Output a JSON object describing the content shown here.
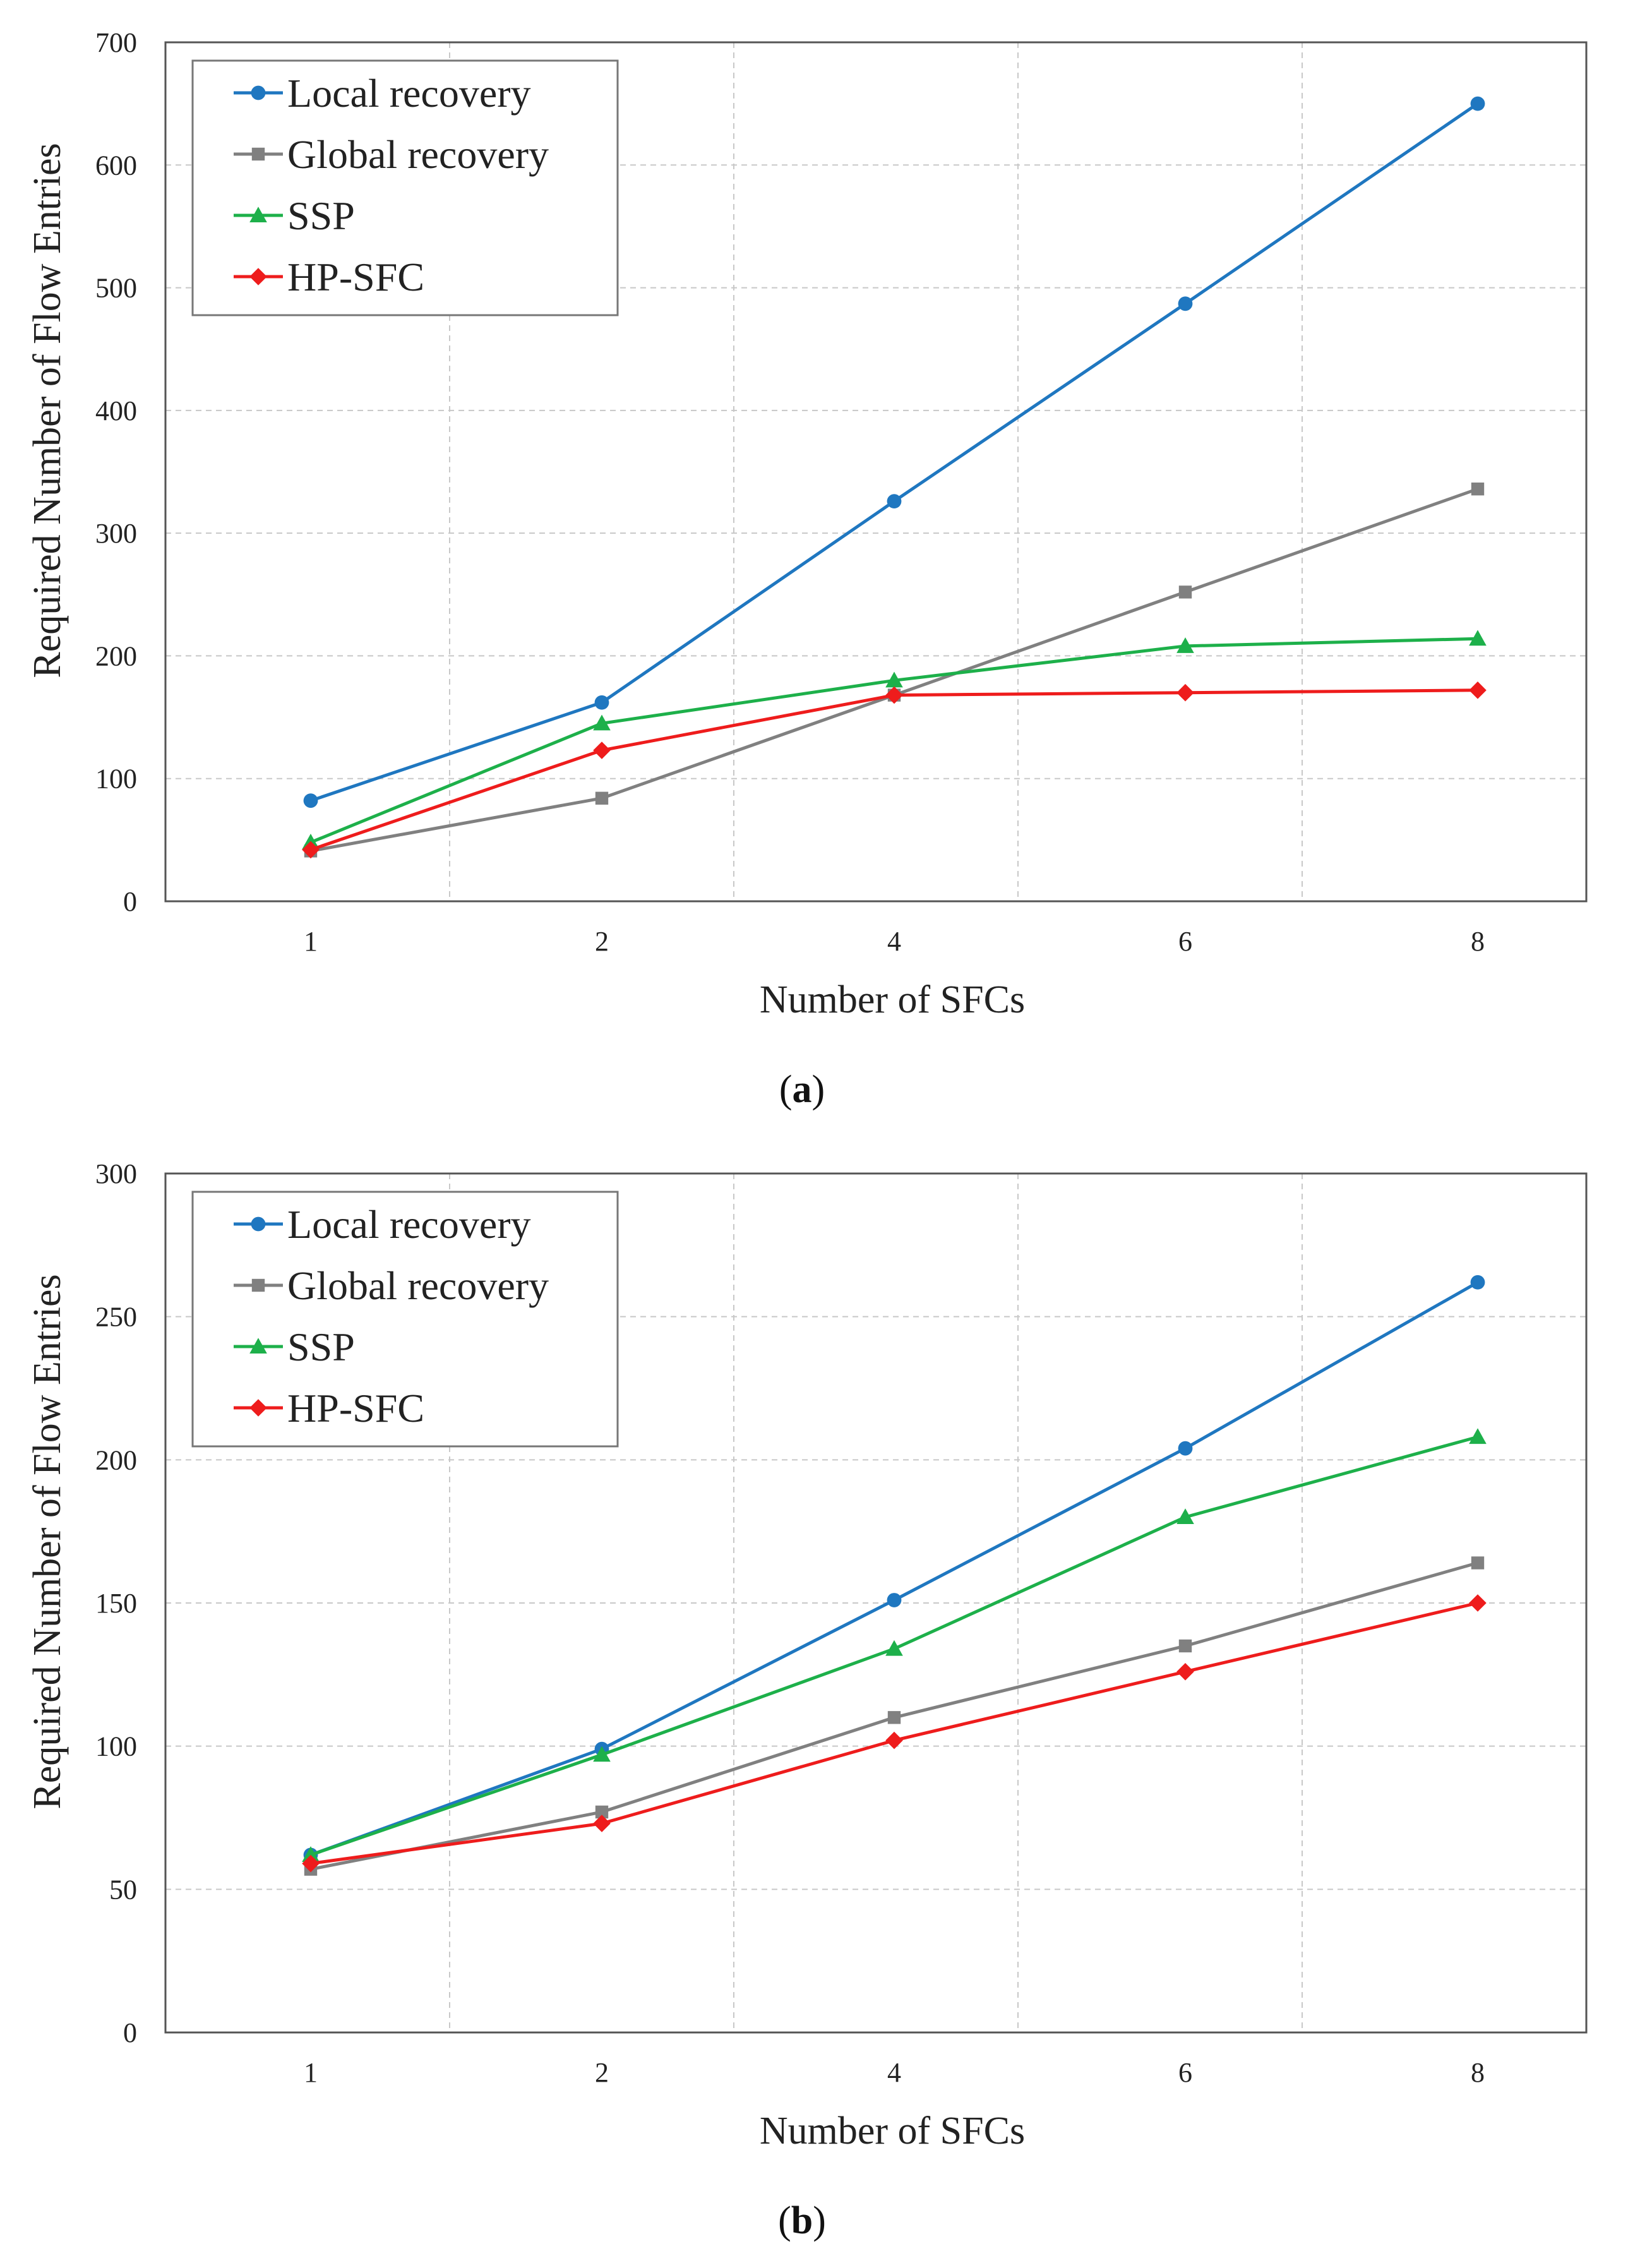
{
  "chart_data": [
    {
      "type": "line",
      "panel_label": "a",
      "title": "",
      "xlabel": "Number of SFCs",
      "ylabel": "Required Number of Flow Entries",
      "categories": [
        "1",
        "2",
        "4",
        "6",
        "8"
      ],
      "ylim": [
        0,
        700
      ],
      "yticks": [
        0,
        100,
        200,
        300,
        400,
        500,
        600,
        700
      ],
      "ytick_labels": [
        "0",
        "100",
        "200",
        "300",
        "400",
        "500",
        "600",
        "700"
      ],
      "grid": true,
      "legend_position": "top-left",
      "series": [
        {
          "name": "Local recovery",
          "color": "#1f77c0",
          "marker": "circle",
          "values": [
            82,
            162,
            326,
            487,
            650
          ]
        },
        {
          "name": "Global recovery",
          "color": "#808080",
          "marker": "square",
          "values": [
            41,
            84,
            168,
            252,
            336
          ]
        },
        {
          "name": "SSP",
          "color": "#1db04a",
          "marker": "triangle",
          "values": [
            48,
            145,
            180,
            208,
            214
          ]
        },
        {
          "name": "HP-SFC",
          "color": "#ee1c1c",
          "marker": "diamond",
          "values": [
            42,
            123,
            168,
            170,
            172
          ]
        }
      ]
    },
    {
      "type": "line",
      "panel_label": "b",
      "title": "",
      "xlabel": "Number of SFCs",
      "ylabel": "Required Number of Flow Entries",
      "categories": [
        "1",
        "2",
        "4",
        "6",
        "8"
      ],
      "ylim": [
        0,
        300
      ],
      "yticks": [
        0,
        50,
        100,
        150,
        200,
        250,
        300
      ],
      "ytick_labels": [
        "0",
        "50",
        "100",
        "150",
        "200",
        "250",
        "300"
      ],
      "grid": true,
      "legend_position": "top-left",
      "series": [
        {
          "name": "Local recovery",
          "color": "#1f77c0",
          "marker": "circle",
          "values": [
            62,
            99,
            151,
            204,
            262
          ]
        },
        {
          "name": "Global recovery",
          "color": "#808080",
          "marker": "square",
          "values": [
            57,
            77,
            110,
            135,
            164
          ]
        },
        {
          "name": "SSP",
          "color": "#1db04a",
          "marker": "triangle",
          "values": [
            62,
            97,
            134,
            180,
            208
          ]
        },
        {
          "name": "HP-SFC",
          "color": "#ee1c1c",
          "marker": "diamond",
          "values": [
            59,
            73,
            102,
            126,
            150
          ]
        }
      ]
    }
  ]
}
